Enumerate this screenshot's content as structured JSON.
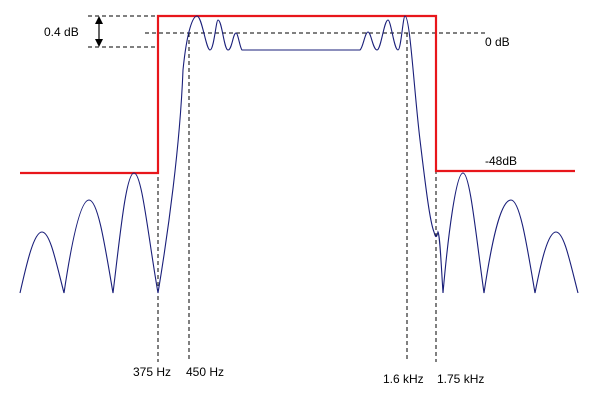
{
  "labels": {
    "ripple": "0.4 dB",
    "zero_db": "0 dB",
    "stopband_db": "-48dB",
    "freq_375": "375 Hz",
    "freq_450": "450 Hz",
    "freq_1600": "1.6 kHz",
    "freq_1750": "1.75 kHz"
  },
  "colors": {
    "mask": "#e8161b",
    "response": "#1a1f7a",
    "guides": "#000000",
    "text": "#000000"
  }
}
